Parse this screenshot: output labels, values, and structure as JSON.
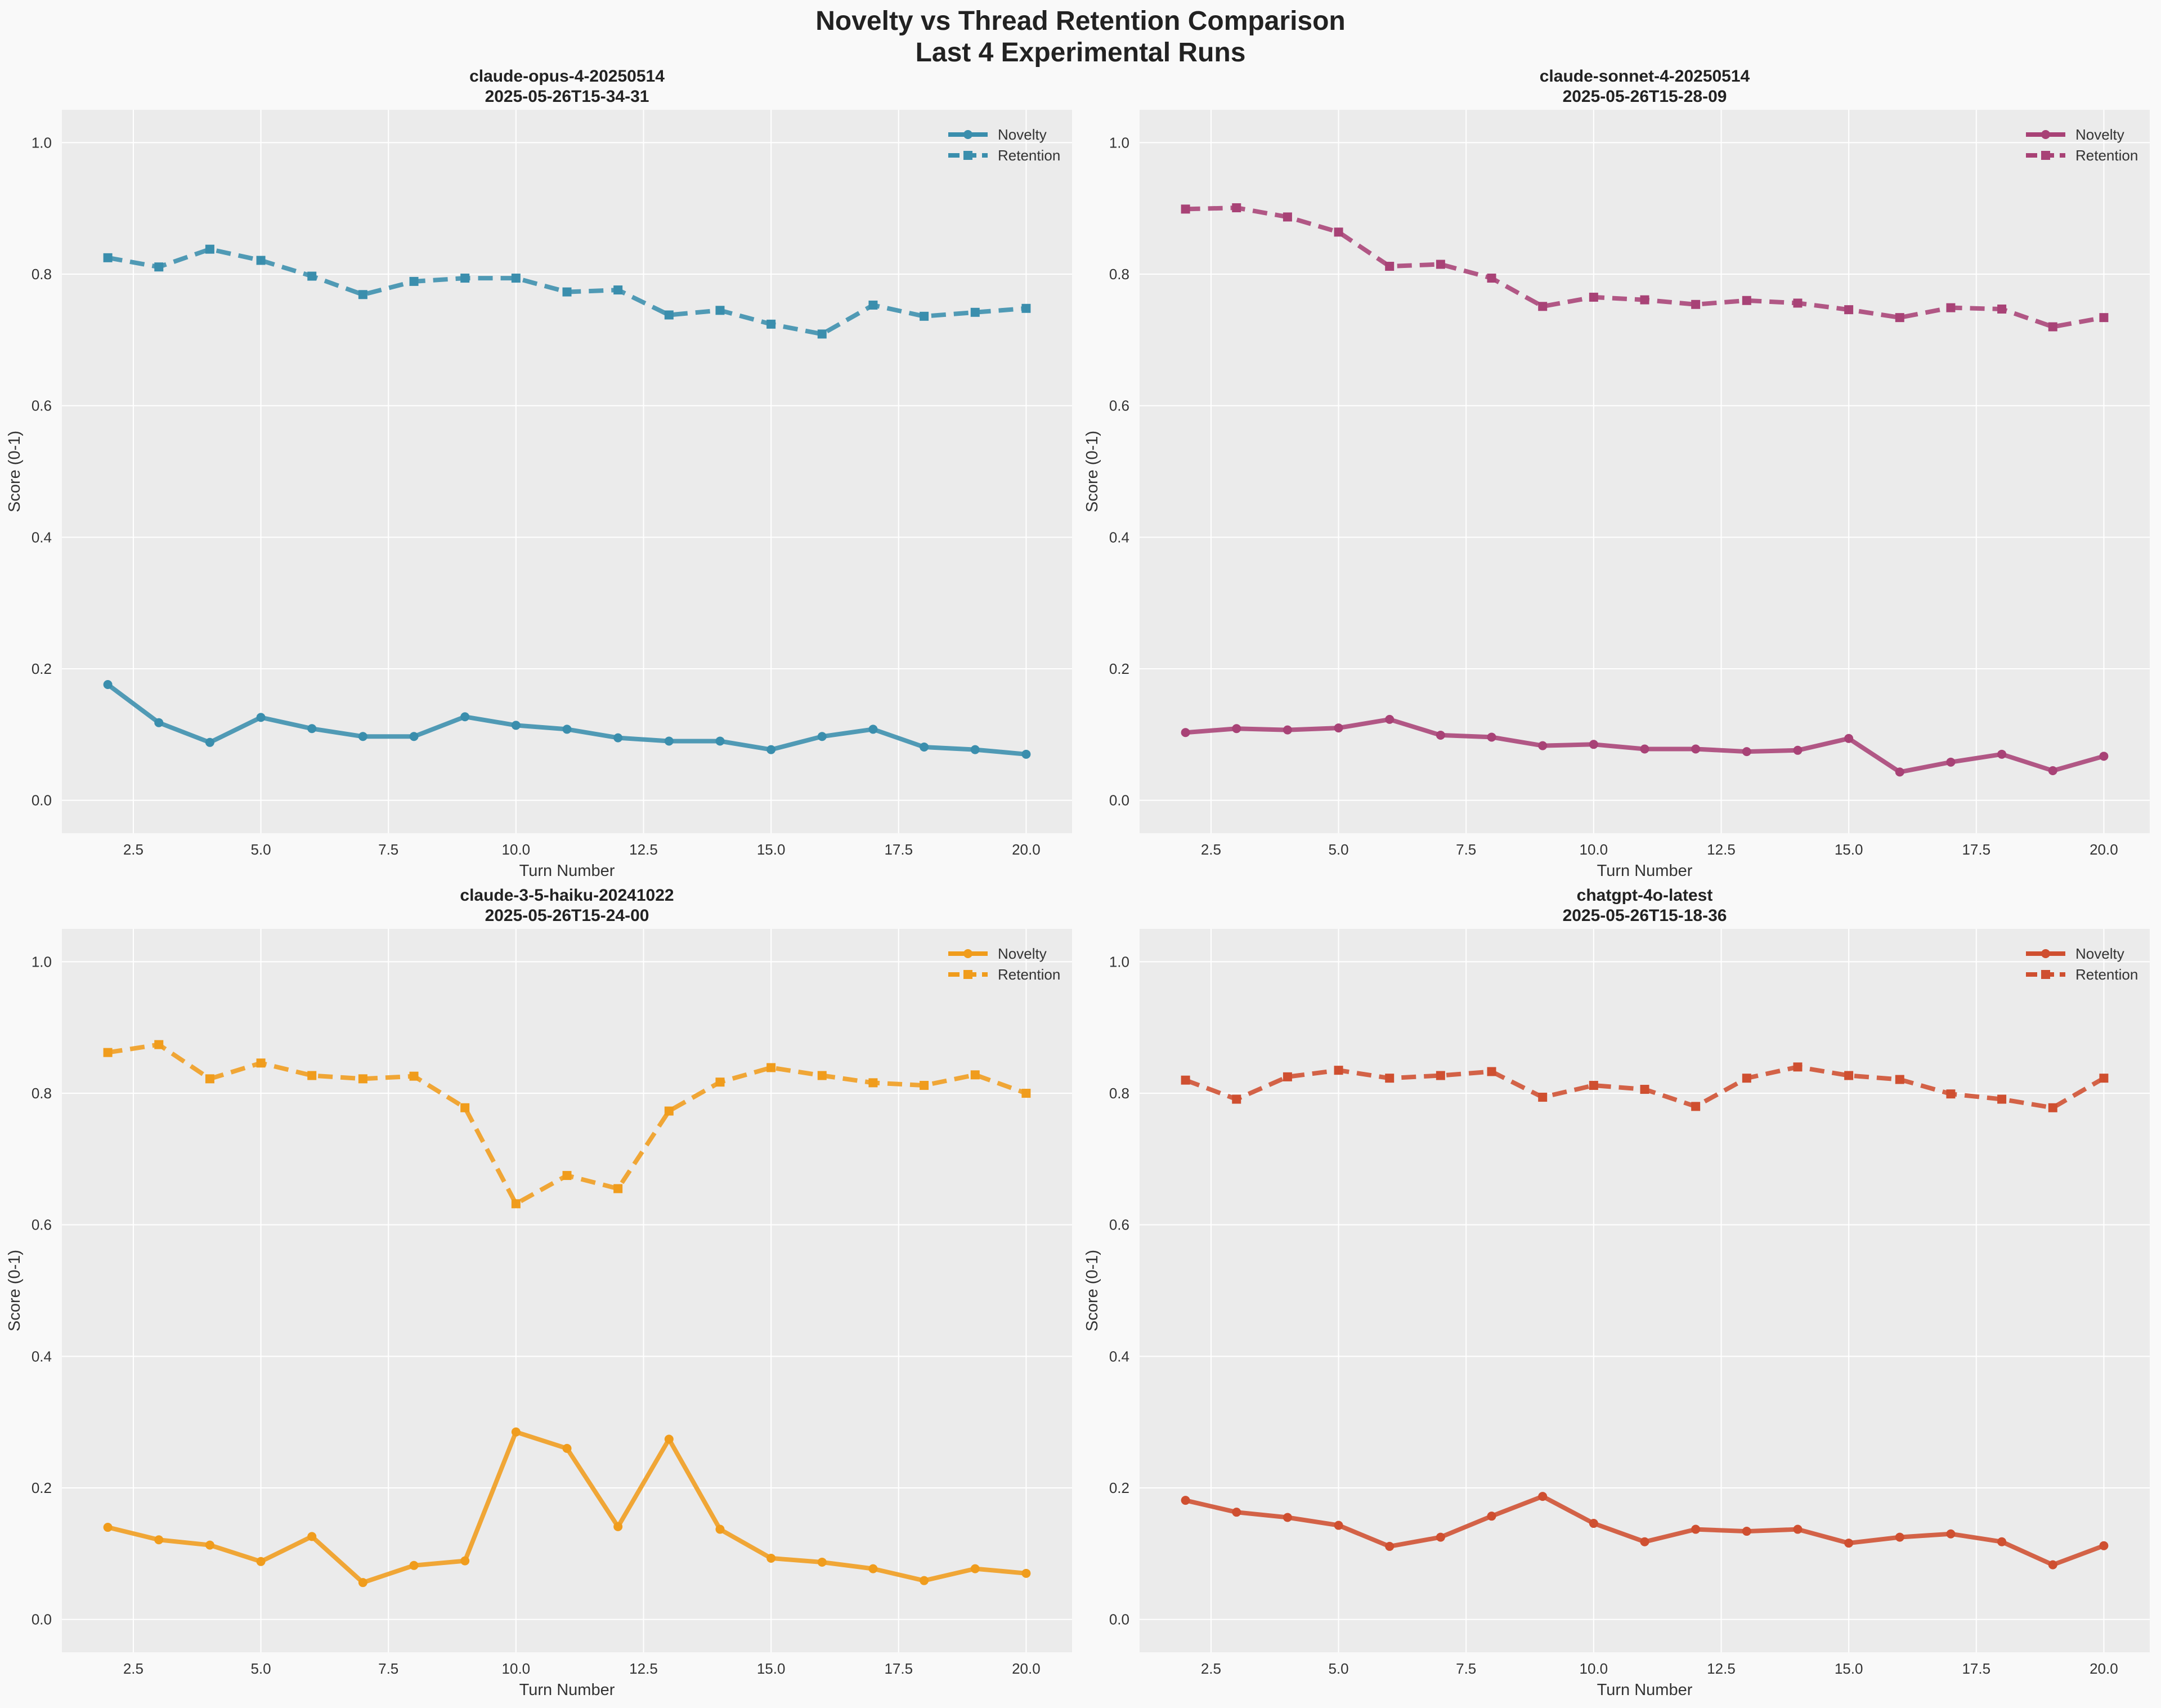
{
  "figure": {
    "title_line1": "Novelty vs Thread Retention Comparison",
    "title_line2": "Last 4 Experimental Runs",
    "background": "#f9f9f9",
    "plot_background": "#ebebeb"
  },
  "chart_data": [
    {
      "type": "line",
      "title_line1": "claude-opus-4-20250514",
      "title_line2": "2025-05-26T15-34-31",
      "xlabel": "Turn Number",
      "ylabel": "Score (0-1)",
      "xlim": [
        1.1,
        20.9
      ],
      "ylim": [
        -0.05,
        1.05
      ],
      "xticks": [
        "2.5",
        "5.0",
        "7.5",
        "10.0",
        "12.5",
        "15.0",
        "17.5",
        "20.0"
      ],
      "yticks": [
        "0.0",
        "0.2",
        "0.4",
        "0.6",
        "0.8",
        "1.0"
      ],
      "grid": true,
      "legend": "top-right",
      "color": "#3a8ead",
      "x": [
        2,
        3,
        4,
        5,
        6,
        7,
        8,
        9,
        10,
        11,
        12,
        13,
        14,
        15,
        16,
        17,
        18,
        19,
        20
      ],
      "series": [
        {
          "name": "Novelty",
          "style": "solid",
          "marker": "circle",
          "values": [
            0.176,
            0.118,
            0.088,
            0.126,
            0.109,
            0.097,
            0.097,
            0.127,
            0.114,
            0.108,
            0.095,
            0.09,
            0.09,
            0.077,
            0.097,
            0.108,
            0.081,
            0.077,
            0.07
          ]
        },
        {
          "name": "Retention",
          "style": "dashed",
          "marker": "square",
          "values": [
            0.825,
            0.811,
            0.838,
            0.821,
            0.797,
            0.769,
            0.789,
            0.794,
            0.794,
            0.773,
            0.776,
            0.738,
            0.745,
            0.724,
            0.709,
            0.753,
            0.736,
            0.742,
            0.748
          ]
        }
      ]
    },
    {
      "type": "line",
      "title_line1": "claude-sonnet-4-20250514",
      "title_line2": "2025-05-26T15-28-09",
      "xlabel": "Turn Number",
      "ylabel": "Score (0-1)",
      "xlim": [
        1.1,
        20.9
      ],
      "ylim": [
        -0.05,
        1.05
      ],
      "xticks": [
        "2.5",
        "5.0",
        "7.5",
        "10.0",
        "12.5",
        "15.0",
        "17.5",
        "20.0"
      ],
      "yticks": [
        "0.0",
        "0.2",
        "0.4",
        "0.6",
        "0.8",
        "1.0"
      ],
      "grid": true,
      "legend": "top-right",
      "color": "#a84276",
      "x": [
        2,
        3,
        4,
        5,
        6,
        7,
        8,
        9,
        10,
        11,
        12,
        13,
        14,
        15,
        16,
        17,
        18,
        19,
        20
      ],
      "series": [
        {
          "name": "Novelty",
          "style": "solid",
          "marker": "circle",
          "values": [
            0.103,
            0.109,
            0.107,
            0.11,
            0.123,
            0.099,
            0.096,
            0.083,
            0.085,
            0.078,
            0.078,
            0.074,
            0.076,
            0.094,
            0.043,
            0.058,
            0.07,
            0.045,
            0.067
          ]
        },
        {
          "name": "Retention",
          "style": "dashed",
          "marker": "square",
          "values": [
            0.899,
            0.901,
            0.887,
            0.864,
            0.812,
            0.815,
            0.794,
            0.751,
            0.765,
            0.761,
            0.754,
            0.76,
            0.756,
            0.746,
            0.734,
            0.749,
            0.747,
            0.72,
            0.734
          ]
        }
      ]
    },
    {
      "type": "line",
      "title_line1": "claude-3-5-haiku-20241022",
      "title_line2": "2025-05-26T15-24-00",
      "xlabel": "Turn Number",
      "ylabel": "Score (0-1)",
      "xlim": [
        1.1,
        20.9
      ],
      "ylim": [
        -0.05,
        1.05
      ],
      "xticks": [
        "2.5",
        "5.0",
        "7.5",
        "10.0",
        "12.5",
        "15.0",
        "17.5",
        "20.0"
      ],
      "yticks": [
        "0.0",
        "0.2",
        "0.4",
        "0.6",
        "0.8",
        "1.0"
      ],
      "grid": true,
      "legend": "top-right",
      "color": "#f09c1c",
      "x": [
        2,
        3,
        4,
        5,
        6,
        7,
        8,
        9,
        10,
        11,
        12,
        13,
        14,
        15,
        16,
        17,
        18,
        19,
        20
      ],
      "series": [
        {
          "name": "Novelty",
          "style": "solid",
          "marker": "circle",
          "values": [
            0.14,
            0.121,
            0.113,
            0.088,
            0.126,
            0.056,
            0.082,
            0.089,
            0.285,
            0.26,
            0.141,
            0.274,
            0.137,
            0.093,
            0.087,
            0.077,
            0.059,
            0.077,
            0.07
          ]
        },
        {
          "name": "Retention",
          "style": "dashed",
          "marker": "square",
          "values": [
            0.862,
            0.874,
            0.822,
            0.846,
            0.827,
            0.822,
            0.826,
            0.778,
            0.632,
            0.675,
            0.655,
            0.773,
            0.817,
            0.839,
            0.827,
            0.816,
            0.812,
            0.828,
            0.8
          ]
        }
      ]
    },
    {
      "type": "line",
      "title_line1": "chatgpt-4o-latest",
      "title_line2": "2025-05-26T15-18-36",
      "xlabel": "Turn Number",
      "ylabel": "Score (0-1)",
      "xlim": [
        1.1,
        20.9
      ],
      "ylim": [
        -0.05,
        1.05
      ],
      "xticks": [
        "2.5",
        "5.0",
        "7.5",
        "10.0",
        "12.5",
        "15.0",
        "17.5",
        "20.0"
      ],
      "yticks": [
        "0.0",
        "0.2",
        "0.4",
        "0.6",
        "0.8",
        "1.0"
      ],
      "grid": true,
      "legend": "top-right",
      "color": "#cf4f30",
      "x": [
        2,
        3,
        4,
        5,
        6,
        7,
        8,
        9,
        10,
        11,
        12,
        13,
        14,
        15,
        16,
        17,
        18,
        19,
        20
      ],
      "series": [
        {
          "name": "Novelty",
          "style": "solid",
          "marker": "circle",
          "values": [
            0.181,
            0.163,
            0.155,
            0.143,
            0.111,
            0.125,
            0.157,
            0.187,
            0.146,
            0.118,
            0.137,
            0.134,
            0.137,
            0.116,
            0.125,
            0.13,
            0.118,
            0.083,
            0.112
          ]
        },
        {
          "name": "Retention",
          "style": "dashed",
          "marker": "square",
          "values": [
            0.82,
            0.791,
            0.825,
            0.835,
            0.823,
            0.827,
            0.833,
            0.794,
            0.812,
            0.806,
            0.78,
            0.823,
            0.84,
            0.827,
            0.821,
            0.799,
            0.791,
            0.778,
            0.823
          ]
        }
      ]
    }
  ]
}
